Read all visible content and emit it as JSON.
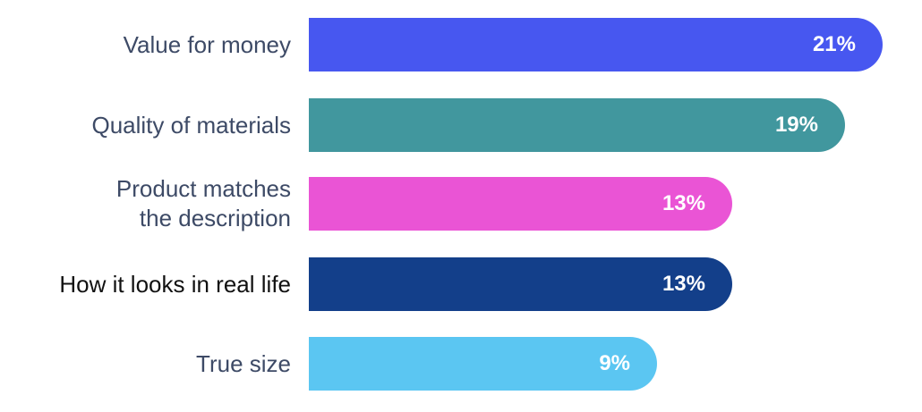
{
  "chart_data": {
    "type": "bar",
    "orientation": "horizontal",
    "title": "",
    "xlabel": "",
    "ylabel": "",
    "categories": [
      "Value for money",
      "Quality of materials",
      "Product matches\nthe description",
      "How it looks in real life",
      "True size"
    ],
    "values": [
      21,
      19,
      13,
      13,
      9
    ],
    "value_labels": [
      "21%",
      "19%",
      "13%",
      "13%",
      "9%"
    ],
    "colors": [
      "#4757F0",
      "#41979E",
      "#EA54D5",
      "#133F8A",
      "#5BC6F2"
    ],
    "grid": false,
    "legend": "none"
  }
}
